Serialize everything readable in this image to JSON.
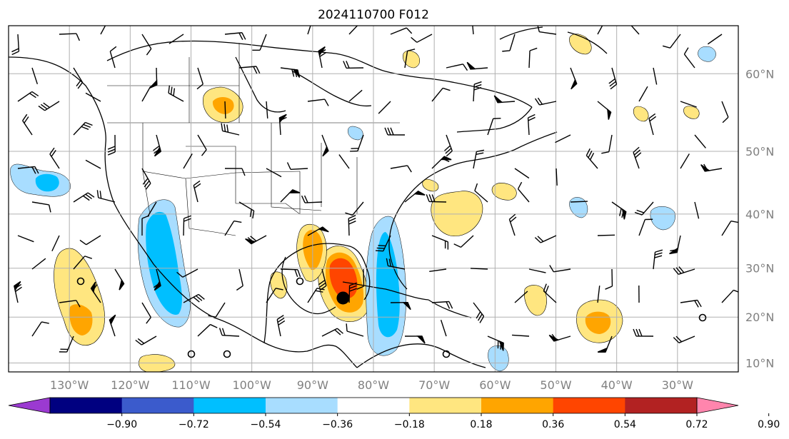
{
  "title": "2024110700 F012",
  "map": {
    "lon_labels": [
      "130°W",
      "120°W",
      "110°W",
      "100°W",
      "90°W",
      "80°W",
      "70°W",
      "60°W",
      "50°W",
      "40°W",
      "30°W"
    ],
    "lon_values": [
      -130,
      -120,
      -110,
      -100,
      -90,
      -80,
      -70,
      -60,
      -50,
      -40,
      -30
    ],
    "lat_labels": [
      "60°N",
      "50°N",
      "40°N",
      "30°N",
      "20°N",
      "10°N"
    ],
    "lat_values": [
      60,
      50,
      40,
      30,
      20,
      10
    ],
    "extent": {
      "lon": [
        -140,
        -20
      ],
      "lat": [
        8,
        65
      ]
    },
    "storm_center": {
      "lon": -85,
      "lat": 24
    }
  },
  "colorbar": {
    "tick_labels": [
      "−0.90",
      "−0.72",
      "−0.54",
      "−0.36",
      "−0.18",
      "0.18",
      "0.36",
      "0.54",
      "0.72",
      "0.90"
    ],
    "levels": [
      -0.9,
      -0.72,
      -0.54,
      -0.36,
      -0.18,
      0.18,
      0.36,
      0.54,
      0.72,
      0.9
    ],
    "colors": [
      "#9b3ad1",
      "#000080",
      "#3b5bcc",
      "#00bfff",
      "#a8ddff",
      "#ffffff",
      "#ffe680",
      "#ffa500",
      "#ff4500",
      "#b22222",
      "#ff85ad"
    ]
  },
  "colors": {
    "pos1": "#ffe680",
    "pos2": "#ffa500",
    "pos3": "#ff4500",
    "neg1": "#a8ddff",
    "neg2": "#00bfff",
    "grid": "#b0b0b0",
    "coast": "#000000"
  }
}
